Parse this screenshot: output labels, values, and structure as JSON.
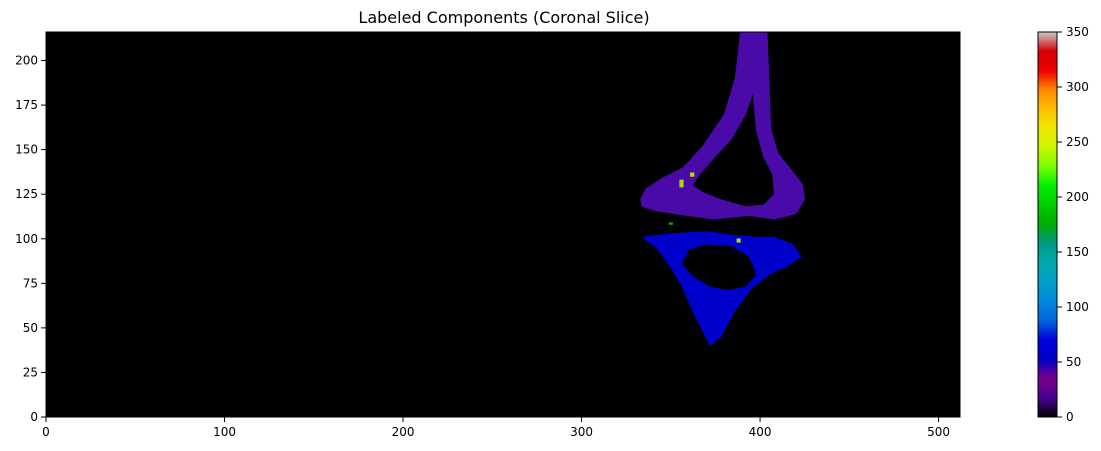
{
  "chart_data": {
    "type": "heatmap",
    "title": "Labeled Components (Coronal Slice)",
    "xlabel": "",
    "ylabel": "",
    "xlim": [
      0,
      512
    ],
    "ylim": [
      0,
      216
    ],
    "x_ticks": [
      0,
      100,
      200,
      300,
      400,
      500
    ],
    "y_ticks": [
      0,
      25,
      50,
      75,
      100,
      125,
      150,
      175,
      200
    ],
    "grid": false,
    "colorbar": {
      "colormap": "nipy_spectral",
      "range": [
        0,
        350
      ],
      "ticks": [
        0,
        50,
        100,
        150,
        200,
        250,
        300,
        350
      ]
    },
    "background_color": "#000000",
    "components": [
      {
        "label_value": 29,
        "color": "#4a0aa8",
        "outline": [
          [
            389,
            216
          ],
          [
            404,
            216
          ],
          [
            405,
            190
          ],
          [
            406,
            162
          ],
          [
            410,
            148
          ],
          [
            418,
            138
          ],
          [
            424,
            130
          ],
          [
            425,
            122
          ],
          [
            420,
            114
          ],
          [
            408,
            111
          ],
          [
            394,
            113
          ],
          [
            374,
            111
          ],
          [
            352,
            114
          ],
          [
            340,
            116
          ],
          [
            334,
            118
          ],
          [
            333,
            122
          ],
          [
            336,
            128
          ],
          [
            345,
            134
          ],
          [
            357,
            140
          ],
          [
            368,
            152
          ],
          [
            380,
            170
          ],
          [
            386,
            190
          ]
        ],
        "holes": [
          [
            [
              396,
              182
            ],
            [
              392,
              170
            ],
            [
              384,
              156
            ],
            [
              374,
              145
            ],
            [
              366,
              136
            ],
            [
              362,
              130
            ],
            [
              368,
              126
            ],
            [
              378,
              122
            ],
            [
              392,
              118
            ],
            [
              402,
              119
            ],
            [
              408,
              125
            ],
            [
              407,
              136
            ],
            [
              402,
              146
            ],
            [
              398,
              160
            ]
          ]
        ]
      },
      {
        "label_value": 58,
        "color": "#0000cc",
        "outline": [
          [
            334,
            101
          ],
          [
            352,
            103
          ],
          [
            370,
            104
          ],
          [
            385,
            102
          ],
          [
            398,
            101
          ],
          [
            408,
            101
          ],
          [
            418,
            97
          ],
          [
            423,
            90
          ],
          [
            416,
            85
          ],
          [
            405,
            80
          ],
          [
            395,
            72
          ],
          [
            385,
            58
          ],
          [
            378,
            45
          ],
          [
            372,
            40
          ],
          [
            368,
            48
          ],
          [
            362,
            60
          ],
          [
            356,
            74
          ],
          [
            350,
            84
          ],
          [
            342,
            95
          ]
        ],
        "holes": [
          [
            [
              356,
              86
            ],
            [
              362,
              79
            ],
            [
              372,
              73
            ],
            [
              382,
              71
            ],
            [
              392,
              73
            ],
            [
              398,
              80
            ],
            [
              394,
              90
            ],
            [
              384,
              96
            ],
            [
              370,
              97
            ],
            [
              360,
              94
            ]
          ]
        ]
      },
      {
        "label_value": 225,
        "color": "#a8d800",
        "outline": [
          [
            355,
            133
          ],
          [
            357,
            133
          ],
          [
            357,
            129
          ],
          [
            355,
            129
          ]
        ],
        "holes": []
      },
      {
        "label_value": 240,
        "color": "#b4e000",
        "outline": [
          [
            361,
            137
          ],
          [
            363,
            137
          ],
          [
            363,
            135
          ],
          [
            361,
            135
          ]
        ],
        "holes": []
      },
      {
        "label_value": 180,
        "color": "#00b400",
        "outline": [
          [
            349,
            109
          ],
          [
            351,
            109
          ],
          [
            351,
            108
          ],
          [
            349,
            108
          ]
        ],
        "holes": []
      },
      {
        "label_value": 230,
        "color": "#b0dc00",
        "outline": [
          [
            387,
            100
          ],
          [
            389,
            100
          ],
          [
            389,
            98
          ],
          [
            387,
            98
          ]
        ],
        "holes": []
      }
    ]
  }
}
